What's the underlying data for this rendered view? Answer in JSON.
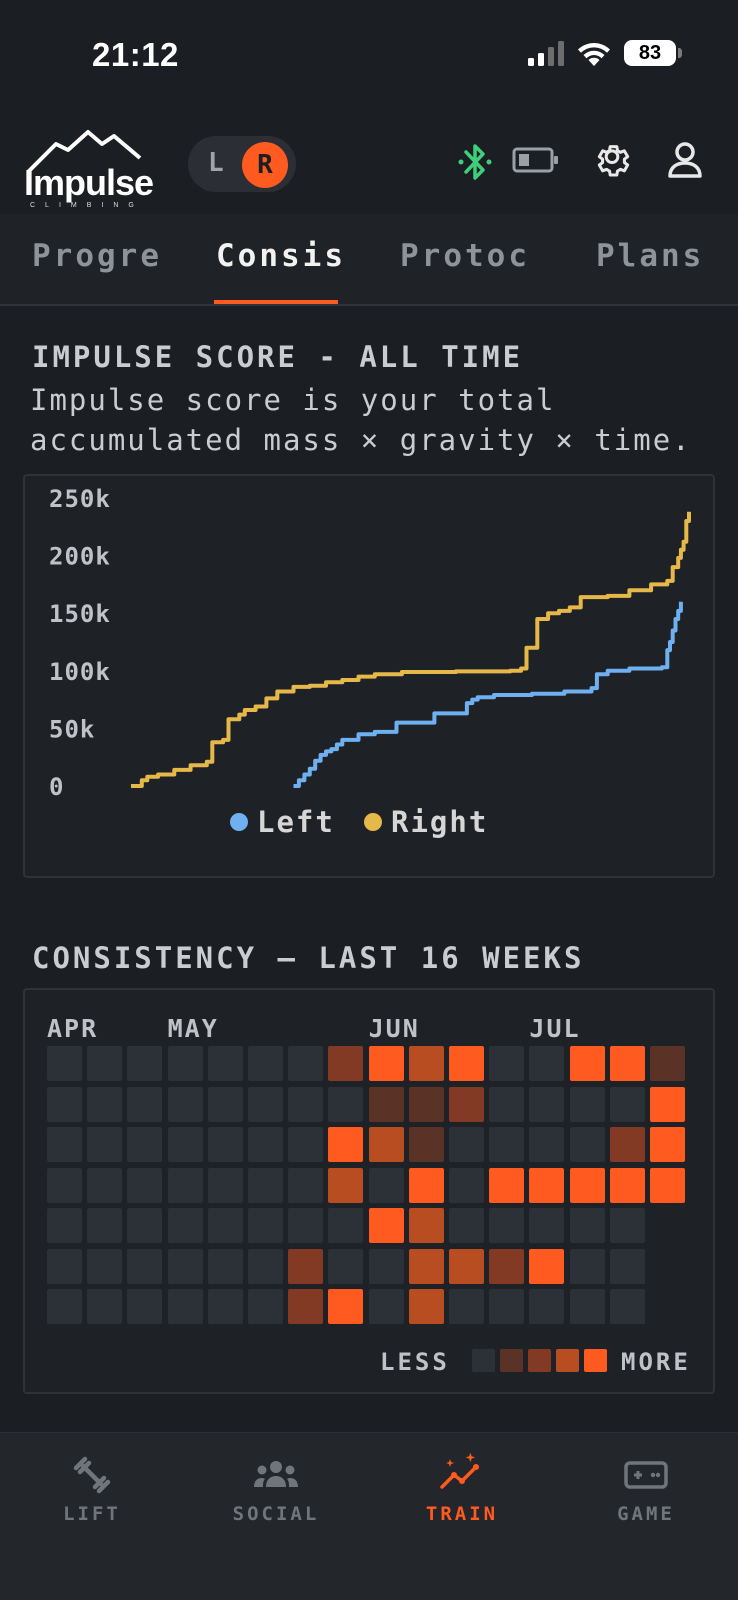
{
  "status": {
    "time": "21:12",
    "battery": "83"
  },
  "header": {
    "logo_word": "Impulse",
    "logo_sub": "CLIMBING",
    "toggle_left": "L",
    "toggle_right": "R",
    "bluetooth_color": "#3ecf7a"
  },
  "tabs": [
    {
      "label": "Progre",
      "active": false
    },
    {
      "label": "Consis",
      "active": true
    },
    {
      "label": "Protoc",
      "active": false
    },
    {
      "label": "Plans",
      "active": false
    }
  ],
  "impulse": {
    "title": "IMPULSE SCORE - ALL TIME",
    "description": "Impulse score is your total accumulated mass × gravity × time."
  },
  "chart_data": {
    "type": "line",
    "title": "IMPULSE SCORE - ALL TIME",
    "y_ticks": [
      "0",
      "50k",
      "100k",
      "150k",
      "200k",
      "250k"
    ],
    "ylim": [
      0,
      250000
    ],
    "x_range": [
      0,
      100
    ],
    "legend_placement": "bottom-center",
    "series": [
      {
        "name": "Left",
        "color": "#6fb0f0",
        "points": [
          [
            30,
            0
          ],
          [
            31,
            5000
          ],
          [
            32,
            10000
          ],
          [
            33,
            15000
          ],
          [
            34,
            22000
          ],
          [
            35,
            27000
          ],
          [
            36,
            30000
          ],
          [
            37,
            32000
          ],
          [
            38,
            36000
          ],
          [
            39,
            40000
          ],
          [
            42,
            45000
          ],
          [
            45,
            47000
          ],
          [
            49,
            55000
          ],
          [
            56,
            63000
          ],
          [
            62,
            72000
          ],
          [
            63,
            75000
          ],
          [
            64,
            77000
          ],
          [
            67,
            79000
          ],
          [
            74,
            80000
          ],
          [
            80,
            82000
          ],
          [
            85,
            85000
          ],
          [
            86,
            97000
          ],
          [
            88,
            100000
          ],
          [
            92,
            102000
          ],
          [
            98,
            103000
          ],
          [
            99,
            118000
          ],
          [
            99.5,
            125000
          ],
          [
            100,
            135000
          ],
          [
            100.5,
            145000
          ],
          [
            101,
            152000
          ],
          [
            101.5,
            160000
          ]
        ]
      },
      {
        "name": "Right",
        "color": "#e6b84a",
        "points": [
          [
            0,
            0
          ],
          [
            2,
            5000
          ],
          [
            3,
            8000
          ],
          [
            5,
            10000
          ],
          [
            8,
            14000
          ],
          [
            11,
            18000
          ],
          [
            14,
            21000
          ],
          [
            15,
            38000
          ],
          [
            17,
            40000
          ],
          [
            18,
            58000
          ],
          [
            20,
            62000
          ],
          [
            21,
            66000
          ],
          [
            23,
            69000
          ],
          [
            25,
            76000
          ],
          [
            27,
            82000
          ],
          [
            30,
            86000
          ],
          [
            33,
            87000
          ],
          [
            36,
            90000
          ],
          [
            39,
            92000
          ],
          [
            42,
            95000
          ],
          [
            45,
            97000
          ],
          [
            50,
            99000
          ],
          [
            60,
            99500
          ],
          [
            70,
            100000
          ],
          [
            72,
            102000
          ],
          [
            73,
            120000
          ],
          [
            75,
            145000
          ],
          [
            77,
            150000
          ],
          [
            79,
            152000
          ],
          [
            81,
            155000
          ],
          [
            83,
            164000
          ],
          [
            88,
            165000
          ],
          [
            92,
            170000
          ],
          [
            96,
            175000
          ],
          [
            99,
            178000
          ],
          [
            100,
            190000
          ],
          [
            101,
            198000
          ],
          [
            101.5,
            205000
          ],
          [
            102,
            212000
          ],
          [
            102.5,
            230000
          ],
          [
            103,
            238000
          ]
        ]
      }
    ]
  },
  "consistency": {
    "title": "CONSISTENCY — LAST 16 WEEKS",
    "months": [
      {
        "label": "APR",
        "week": 0
      },
      {
        "label": "MAY",
        "week": 3
      },
      {
        "label": "JUN",
        "week": 8
      },
      {
        "label": "JUL",
        "week": 12
      }
    ],
    "levels": [
      "#2c3037",
      "#5a3326",
      "#823a24",
      "#b84d22",
      "#ff5a1f"
    ],
    "grid": [
      [
        0,
        0,
        0,
        0,
        0,
        0,
        0,
        2,
        4,
        3,
        4,
        0,
        0,
        4,
        4,
        1
      ],
      [
        0,
        0,
        0,
        0,
        0,
        0,
        0,
        0,
        1,
        1,
        2,
        0,
        0,
        0,
        0,
        4
      ],
      [
        0,
        0,
        0,
        0,
        0,
        0,
        0,
        4,
        3,
        1,
        0,
        0,
        0,
        0,
        2,
        4
      ],
      [
        0,
        0,
        0,
        0,
        0,
        0,
        0,
        3,
        0,
        4,
        0,
        4,
        4,
        4,
        4,
        4
      ],
      [
        0,
        0,
        0,
        0,
        0,
        0,
        0,
        0,
        4,
        3,
        0,
        0,
        0,
        0,
        0,
        -1
      ],
      [
        0,
        0,
        0,
        0,
        0,
        0,
        2,
        0,
        0,
        3,
        3,
        2,
        4,
        0,
        0,
        -1
      ],
      [
        0,
        0,
        0,
        0,
        0,
        0,
        2,
        4,
        0,
        3,
        0,
        0,
        0,
        0,
        0,
        -1
      ]
    ],
    "legend_less": "LESS",
    "legend_more": "MORE"
  },
  "nav": [
    {
      "label": "LIFT",
      "icon": "dumbbell-icon",
      "active": false
    },
    {
      "label": "SOCIAL",
      "icon": "people-icon",
      "active": false
    },
    {
      "label": "TRAIN",
      "icon": "trend-sparkle-icon",
      "active": true
    },
    {
      "label": "GAME",
      "icon": "gamepad-icon",
      "active": false
    }
  ]
}
